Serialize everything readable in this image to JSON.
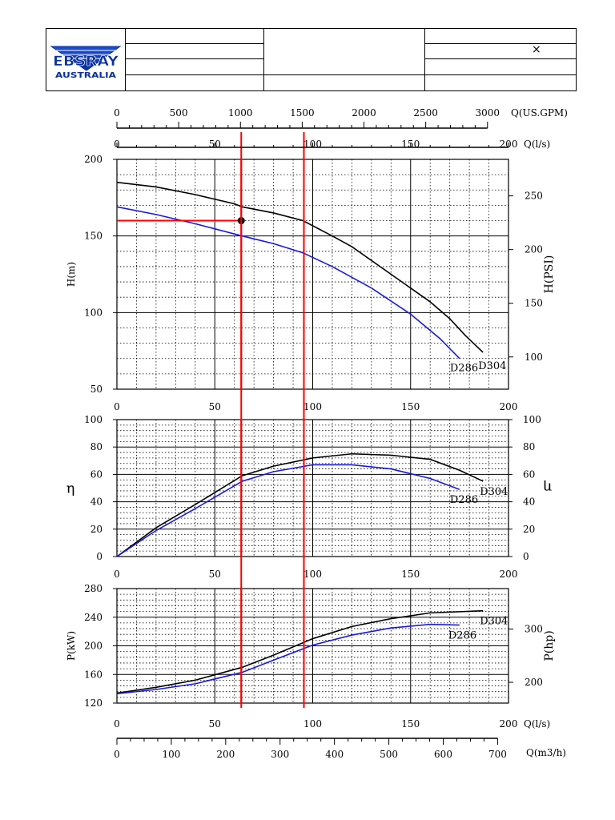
{
  "header": {
    "logo_text_top": "EBSRAY",
    "logo_text_bottom": "AUSTRALIA",
    "mark": "×"
  },
  "chart_data": {
    "type": "line",
    "q_top_gpm": {
      "label": "Q(US.GPM)",
      "ticks": [
        0,
        500,
        1000,
        1500,
        2000,
        2500,
        3000
      ]
    },
    "q_ls": {
      "label": "Q(l/s)",
      "range": [
        0,
        200
      ],
      "ticks": [
        0,
        50,
        100,
        150,
        200
      ]
    },
    "q_m3h": {
      "label": "Q(m3/h)",
      "ticks": [
        0,
        100,
        200,
        300,
        400,
        500,
        600,
        700
      ]
    },
    "head": {
      "ylabel": "H(m)",
      "ylim": [
        50,
        200
      ],
      "ticks": [
        50,
        100,
        150,
        200
      ],
      "right_label": "H(PSI)",
      "right_ticks": [
        100,
        150,
        200,
        250
      ],
      "series": [
        {
          "name": "D304",
          "color": "#000000",
          "x": [
            0,
            20,
            40,
            60,
            64,
            80,
            95,
            110,
            120,
            140,
            160,
            170,
            178,
            187
          ],
          "y": [
            185,
            182,
            177,
            171,
            169,
            165,
            160,
            150,
            143,
            125,
            107,
            96,
            85,
            74
          ]
        },
        {
          "name": "D286",
          "color": "#1a1adc",
          "x": [
            0,
            20,
            40,
            64,
            80,
            95,
            110,
            130,
            150,
            165,
            175
          ],
          "y": [
            169,
            164,
            158,
            150,
            145,
            139,
            130,
            116,
            99,
            83,
            70
          ]
        }
      ]
    },
    "efficiency": {
      "ylabel": "η",
      "ylim": [
        0,
        100
      ],
      "ticks": [
        0,
        20,
        40,
        60,
        80,
        100
      ],
      "right_label": "η",
      "series": [
        {
          "name": "D304",
          "color": "#000000",
          "x": [
            0,
            20,
            40,
            64,
            80,
            100,
            120,
            140,
            160,
            175,
            187
          ],
          "y": [
            0,
            21,
            38,
            59,
            66,
            72,
            75,
            74,
            71,
            63,
            55
          ]
        },
        {
          "name": "D286",
          "color": "#1a1adc",
          "x": [
            0,
            20,
            40,
            64,
            80,
            100,
            120,
            140,
            160,
            175
          ],
          "y": [
            0,
            19,
            35,
            55,
            62,
            67,
            67,
            64,
            57,
            49
          ]
        }
      ]
    },
    "power": {
      "ylabel": "P(kW)",
      "ylim": [
        120,
        280
      ],
      "ticks": [
        120,
        160,
        200,
        240,
        280
      ],
      "right_label": "P(hp)",
      "right_ticks": [
        200,
        300
      ],
      "series": [
        {
          "name": "D304",
          "color": "#000000",
          "x": [
            0,
            20,
            40,
            64,
            80,
            100,
            120,
            140,
            160,
            187
          ],
          "y": [
            134,
            142,
            152,
            170,
            187,
            210,
            227,
            238,
            246,
            249
          ]
        },
        {
          "name": "D286",
          "color": "#1a1adc",
          "x": [
            0,
            20,
            40,
            64,
            80,
            100,
            120,
            140,
            160,
            175
          ],
          "y": [
            133,
            139,
            147,
            163,
            180,
            201,
            215,
            225,
            230,
            229
          ]
        }
      ]
    },
    "markers": {
      "vertical_lines_q_ls": [
        63.5,
        95.5
      ],
      "operating_point": {
        "q": 63.5,
        "h": 160
      },
      "color": "#ff0000"
    },
    "grid": true
  }
}
